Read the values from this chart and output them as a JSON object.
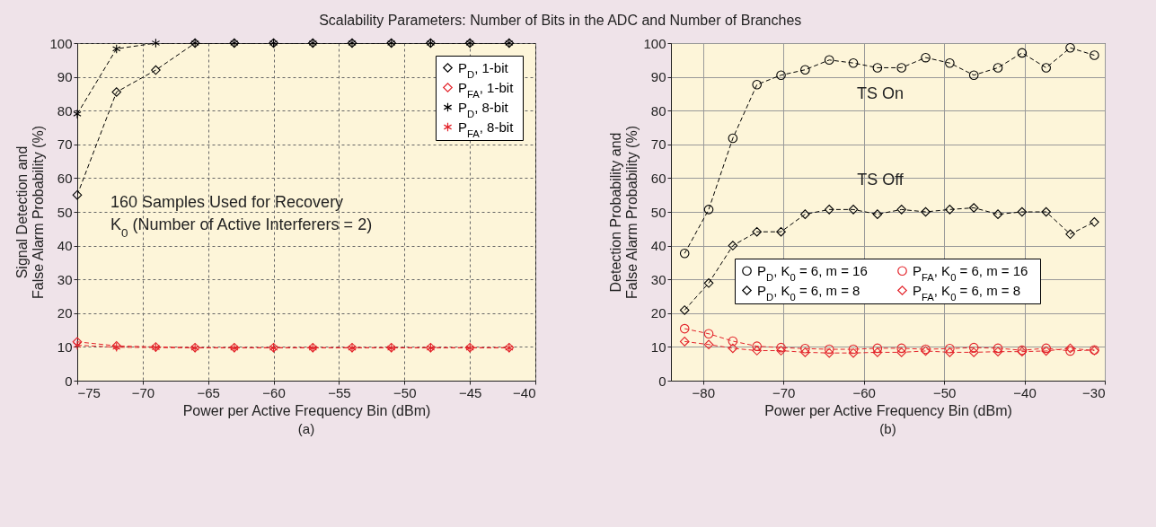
{
  "chart_data": [
    {
      "type": "line",
      "title": "Scalability Parameters: Number of Bits in the ADC and Number of Branches",
      "subtitle": "(a)",
      "xlabel": "Power per Active Frequency Bin (dBm)",
      "ylabel": "Signal Detection and\nFalse Alarm Probability (%)",
      "x": [
        -75,
        -72,
        -69,
        -66,
        -63,
        -60,
        -57,
        -54,
        -51,
        -48,
        -45,
        -42
      ],
      "series": [
        {
          "name": "P$_{D}$, 1-bit",
          "color": "#000000",
          "marker": "diamond",
          "values": [
            55,
            85.5,
            92,
            100,
            100,
            100,
            100,
            100,
            100,
            100,
            100,
            100
          ]
        },
        {
          "name": "P$_{FA}$, 1-bit",
          "color": "#e3242b",
          "marker": "diamond",
          "values": [
            11.5,
            10.3,
            10,
            9.8,
            9.8,
            9.8,
            9.8,
            9.8,
            9.8,
            9.8,
            9.8,
            9.8
          ]
        },
        {
          "name": "P$_{D}$, 8-bit",
          "color": "#000000",
          "marker": "cross",
          "values": [
            79,
            98.3,
            100,
            100,
            100,
            100,
            100,
            100,
            100,
            100,
            100,
            100
          ]
        },
        {
          "name": "P$_{FA}$, 8-bit",
          "color": "#e3242b",
          "marker": "cross",
          "values": [
            10.5,
            9.9,
            9.8,
            9.7,
            9.7,
            9.7,
            9.7,
            9.7,
            9.7,
            9.7,
            9.7,
            9.7
          ]
        }
      ],
      "xlim": [
        -75,
        -40
      ],
      "xticks": [
        -75,
        -70,
        -65,
        -60,
        -55,
        -50,
        -45,
        -40
      ],
      "ylim": [
        0,
        100
      ],
      "yticks": [
        0,
        10,
        20,
        30,
        40,
        50,
        60,
        70,
        80,
        90,
        100
      ],
      "grid": true,
      "legend": "top right",
      "line_style": "dashed",
      "annotations": [
        "160 Samples Used for Recovery",
        "K$_{0}$ (Number of Active Interferers = 2)"
      ]
    },
    {
      "type": "line",
      "subtitle": "(b)",
      "xlabel": "Power per Active Frequency Bin (dBm)",
      "ylabel": "Detection Probability and\nFalse Alarm Probability (%)",
      "x": [
        -82.3,
        -79.3,
        -76.3,
        -73.3,
        -70.3,
        -67.3,
        -64.3,
        -61.3,
        -58.3,
        -55.3,
        -52.3,
        -49.3,
        -46.3,
        -43.3,
        -40.3,
        -37.3,
        -34.3,
        -31.3
      ],
      "series": [
        {
          "name": "P$_{D}$, K$_{0}$ = 6, m = 16",
          "color": "#000000",
          "marker": "circle",
          "values": [
            37.7,
            50.7,
            71.8,
            87.7,
            90.5,
            92.1,
            95,
            94.1,
            92.7,
            92.7,
            95.7,
            94.1,
            90.5,
            92.7,
            97.1,
            92.7,
            98.6,
            96.4
          ]
        },
        {
          "name": "P$_{D}$, K$_{0}$ = 6, m = 8",
          "color": "#000000",
          "marker": "diamond",
          "values": [
            20.9,
            28.9,
            40,
            44.1,
            44.1,
            49.3,
            50.7,
            50.7,
            49.3,
            50.7,
            50,
            50.7,
            51.2,
            49.3,
            50,
            50,
            43.4,
            47
          ]
        },
        {
          "name": "P$_{FA}$, K$_{0}$ = 6, m = 16",
          "color": "#e3242b",
          "marker": "circle",
          "values": [
            15.4,
            13.9,
            11.7,
            10.2,
            9.8,
            9.5,
            9.3,
            9.3,
            9.6,
            9.6,
            9.3,
            9.5,
            9.8,
            9.6,
            9,
            9.6,
            8.8,
            9.1
          ]
        },
        {
          "name": "P$_{FA}$, K$_{0}$ = 6, m = 8",
          "color": "#e3242b",
          "marker": "diamond",
          "values": [
            11.6,
            10.7,
            9.6,
            8.9,
            8.9,
            8.4,
            8.2,
            8.2,
            8.4,
            8.4,
            8.8,
            8.4,
            8.4,
            8.6,
            8.6,
            8.8,
            9.6,
            8.9
          ]
        }
      ],
      "xlim": [
        -84,
        -30
      ],
      "xticks": [
        -80,
        -70,
        -60,
        -50,
        -40,
        -30
      ],
      "ylim": [
        0,
        100
      ],
      "yticks": [
        0,
        10,
        20,
        30,
        40,
        50,
        60,
        70,
        80,
        90,
        100
      ],
      "grid": true,
      "legend": "bottom right",
      "line_style": "dashed",
      "annotations": [
        "TS On",
        "TS Off"
      ]
    }
  ]
}
